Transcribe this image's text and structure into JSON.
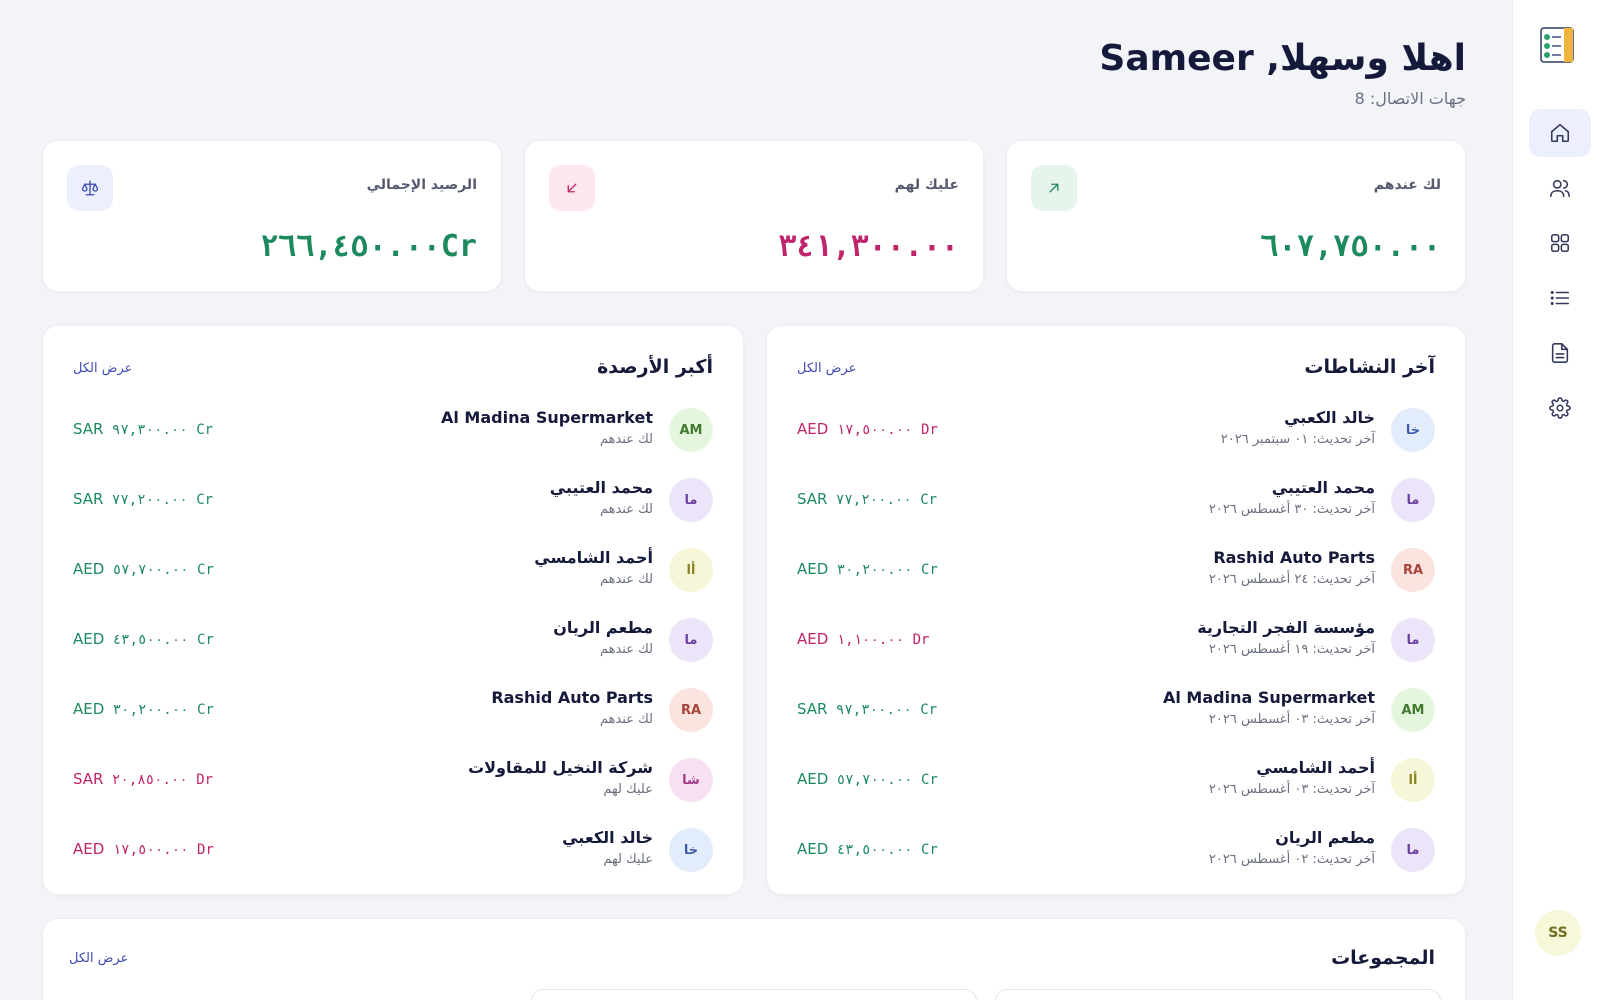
{
  "header": {
    "greeting": "اهلا وسهلا, Sameer",
    "contacts_count": "جهات الاتصال: 8"
  },
  "stats": [
    {
      "label": "لك عندهم",
      "value": "٦٠٧,٧٥٠.٠٠",
      "color": "#1d8a5e",
      "icon": "arrow-up-right-icon"
    },
    {
      "label": "عليك لهم",
      "value": "٣٤١,٣٠٠.٠٠",
      "color": "#c0246a",
      "icon": "arrow-down-left-icon"
    },
    {
      "label": "الرصيد الإجمالي",
      "value": "٢٦٦,٤٥٠.٠٠Cr",
      "color": "#1d8a5e",
      "icon": "scale-icon"
    }
  ],
  "activity": {
    "title": "آخر النشاطات",
    "view_all": "عرض الكل",
    "items": [
      {
        "initials": "خا",
        "name": "خالد الكعبي",
        "sub": "آخر تحديث: ٠١ سبتمبر ٢٠٢٦",
        "currency": "AED",
        "amount": "١٧,٥٠٠.٠٠",
        "type": "Dr"
      },
      {
        "initials": "ما",
        "name": "محمد العتيبي",
        "sub": "آخر تحديث: ٣٠ أغسطس ٢٠٢٦",
        "currency": "SAR",
        "amount": "٧٧,٢٠٠.٠٠",
        "type": "Cr"
      },
      {
        "initials": "RA",
        "name": "Rashid Auto Parts",
        "sub": "آخر تحديث: ٢٤ أغسطس ٢٠٢٦",
        "currency": "AED",
        "amount": "٣٠,٢٠٠.٠٠",
        "type": "Cr"
      },
      {
        "initials": "ما",
        "name": "مؤسسة الفجر التجارية",
        "sub": "آخر تحديث: ١٩ أغسطس ٢٠٢٦",
        "currency": "AED",
        "amount": "١,١٠٠.٠٠",
        "type": "Dr"
      },
      {
        "initials": "AM",
        "name": "Al Madina Supermarket",
        "sub": "آخر تحديث: ٠٣ أغسطس ٢٠٢٦",
        "currency": "SAR",
        "amount": "٩٧,٣٠٠.٠٠",
        "type": "Cr"
      },
      {
        "initials": "أا",
        "name": "أحمد الشامسي",
        "sub": "آخر تحديث: ٠٣ أغسطس ٢٠٢٦",
        "currency": "AED",
        "amount": "٥٧,٧٠٠.٠٠",
        "type": "Cr"
      },
      {
        "initials": "ما",
        "name": "مطعم الريان",
        "sub": "آخر تحديث: ٠٢ أغسطس ٢٠٢٦",
        "currency": "AED",
        "amount": "٤٣,٥٠٠.٠٠",
        "type": "Cr"
      }
    ]
  },
  "balances": {
    "title": "أكبر الأرصدة",
    "view_all": "عرض الكل",
    "items": [
      {
        "initials": "AM",
        "name": "Al Madina Supermarket",
        "sub": "لك عندهم",
        "currency": "SAR",
        "amount": "٩٧,٣٠٠.٠٠",
        "type": "Cr"
      },
      {
        "initials": "ما",
        "name": "محمد العتيبي",
        "sub": "لك عندهم",
        "currency": "SAR",
        "amount": "٧٧,٢٠٠.٠٠",
        "type": "Cr"
      },
      {
        "initials": "أا",
        "name": "أحمد الشامسي",
        "sub": "لك عندهم",
        "currency": "AED",
        "amount": "٥٧,٧٠٠.٠٠",
        "type": "Cr"
      },
      {
        "initials": "ما",
        "name": "مطعم الريان",
        "sub": "لك عندهم",
        "currency": "AED",
        "amount": "٤٣,٥٠٠.٠٠",
        "type": "Cr"
      },
      {
        "initials": "RA",
        "name": "Rashid Auto Parts",
        "sub": "لك عندهم",
        "currency": "AED",
        "amount": "٣٠,٢٠٠.٠٠",
        "type": "Cr"
      },
      {
        "initials": "شا",
        "name": "شركة النخيل للمقاولات",
        "sub": "عليك لهم",
        "currency": "SAR",
        "amount": "٢٠,٨٥٠.٠٠",
        "type": "Dr"
      },
      {
        "initials": "خا",
        "name": "خالد الكعبي",
        "sub": "عليك لهم",
        "currency": "AED",
        "amount": "١٧,٥٠٠.٠٠",
        "type": "Dr"
      }
    ]
  },
  "groups": {
    "title": "المجموعات",
    "view_all": "عرض الكل"
  },
  "user": {
    "initials": "SS"
  },
  "nav": [
    {
      "icon": "home-icon",
      "active": true
    },
    {
      "icon": "users-icon",
      "active": false
    },
    {
      "icon": "grid-icon",
      "active": false
    },
    {
      "icon": "list-icon",
      "active": false
    },
    {
      "icon": "document-icon",
      "active": false
    },
    {
      "icon": "gear-icon",
      "active": false
    }
  ],
  "avatar_palette": {
    "خا": {
      "bg": "#e3ecfb",
      "fg": "#3d5aa8"
    },
    "ما": {
      "bg": "#ece4f8",
      "fg": "#6a3fa0"
    },
    "RA": {
      "bg": "#fbe3df",
      "fg": "#a8453a"
    },
    "AM": {
      "bg": "#e5f6df",
      "fg": "#3f7a2f"
    },
    "أا": {
      "bg": "#f8f6d8",
      "fg": "#8a8420"
    },
    "شا": {
      "bg": "#f7e0f1",
      "fg": "#a03b86"
    }
  }
}
